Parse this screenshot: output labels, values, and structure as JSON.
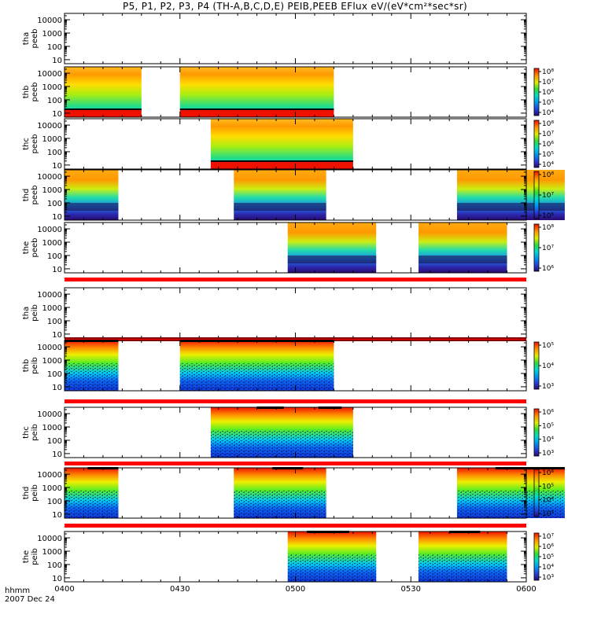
{
  "title": "P5, P1, P2, P3, P4 (TH-A,B,C,D,E) PEIB,PEEB EFlux eV/(eV*cm²*sec*sr)",
  "footer": {
    "xlabel": "hhmm",
    "date": "2007 Dec 24"
  },
  "chart_data": {
    "type": "heatmap",
    "title": "P5, P1, P2, P3, P4 (TH-A,B,C,D,E) PEIB,PEEB EFlux eV/(eV*cm²*sec*sr)",
    "x_tick_labels": [
      "0400",
      "0430",
      "0500",
      "0530",
      "0600"
    ],
    "x_range_minutes": [
      0,
      120
    ],
    "y_tick_labels": [
      "10",
      "100",
      "1000",
      "10000"
    ],
    "y_scale": "log",
    "panels": [
      {
        "name": "tha peeb",
        "label1": "tha",
        "label2": "peeb",
        "kind": "peeb",
        "ylim": [
          5,
          30000
        ],
        "segments": [],
        "colorbar": null,
        "bars": []
      },
      {
        "name": "thb peeb",
        "label1": "thb",
        "label2": "peeb",
        "kind": "peeb",
        "ylim": [
          5,
          30000
        ],
        "segments": [
          [
            0,
            20
          ],
          [
            30,
            70
          ]
        ],
        "colorbar": [
          "10⁴",
          "10⁵",
          "10⁶",
          "10⁷",
          "10⁸"
        ],
        "bars": []
      },
      {
        "name": "thc peeb",
        "label1": "thc",
        "label2": "peeb",
        "kind": "peeb",
        "ylim": [
          5,
          30000
        ],
        "segments": [
          [
            38,
            75
          ]
        ],
        "colorbar": [
          "10⁴",
          "10⁵",
          "10⁶",
          "10⁷",
          "10⁸"
        ],
        "bars": []
      },
      {
        "name": "thd peeb",
        "label1": "thd",
        "label2": "peeb",
        "kind": "peeb",
        "ylim": [
          5,
          30000
        ],
        "segments": [
          [
            0,
            14
          ],
          [
            44,
            68
          ],
          [
            102,
            130
          ]
        ],
        "colorbar": [
          "10⁶",
          "10⁷",
          "10⁸"
        ],
        "bars": []
      },
      {
        "name": "the peeb",
        "label1": "the",
        "label2": "peeb",
        "kind": "peeb",
        "ylim": [
          5,
          30000
        ],
        "segments": [
          [
            58,
            81
          ],
          [
            92,
            115
          ]
        ],
        "colorbar": [
          "10⁶",
          "10⁷",
          "10⁸"
        ],
        "bars": []
      },
      {
        "name": "tha peib",
        "label1": "tha",
        "label2": "peib",
        "kind": "peib",
        "ylim": [
          5,
          30000
        ],
        "segments": [],
        "colorbar": null,
        "bars": []
      },
      {
        "name": "thb peib",
        "label1": "thb",
        "label2": "peib",
        "kind": "peib",
        "ylim": [
          5,
          30000
        ],
        "segments": [
          [
            0,
            14
          ],
          [
            30,
            70
          ]
        ],
        "colorbar": [
          "10³",
          "10⁴",
          "10⁵"
        ],
        "bars": [
          [
            0,
            14
          ],
          [
            30,
            70
          ]
        ]
      },
      {
        "name": "thc peib",
        "label1": "thc",
        "label2": "peib",
        "kind": "peib",
        "ylim": [
          5,
          30000
        ],
        "segments": [
          [
            38,
            60
          ],
          [
            60,
            75
          ]
        ],
        "colorbar": [
          "10³",
          "10⁴",
          "10⁵",
          "10⁶"
        ],
        "bars": [
          [
            50,
            57
          ],
          [
            66,
            72
          ]
        ]
      },
      {
        "name": "thd peib",
        "label1": "thd",
        "label2": "peib",
        "kind": "peib",
        "ylim": [
          5,
          30000
        ],
        "segments": [
          [
            0,
            14
          ],
          [
            44,
            68
          ],
          [
            102,
            130
          ]
        ],
        "colorbar": [
          "10³",
          "10⁴",
          "10⁵",
          "10⁶"
        ],
        "bars": [
          [
            6,
            14
          ],
          [
            54,
            62
          ],
          [
            112,
            130
          ]
        ]
      },
      {
        "name": "the peib",
        "label1": "the",
        "label2": "peib",
        "kind": "peib",
        "ylim": [
          5,
          30000
        ],
        "segments": [
          [
            58,
            81
          ],
          [
            92,
            115
          ]
        ],
        "colorbar": [
          "10³",
          "10⁴",
          "10⁵",
          "10⁶",
          "10⁷"
        ],
        "bars": [
          [
            63,
            74
          ],
          [
            100,
            108
          ]
        ]
      }
    ]
  }
}
